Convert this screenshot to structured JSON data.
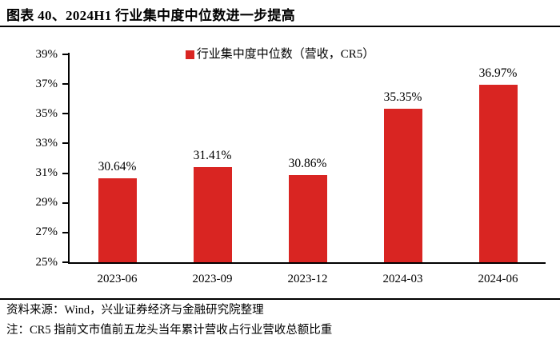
{
  "header": {
    "title": "图表 40、2024H1 行业集中度中位数进一步提高"
  },
  "legend": {
    "label": "行业集中度中位数（营收，CR5）"
  },
  "chart_data": {
    "type": "bar",
    "title": "行业集中度中位数（营收，CR5）",
    "categories": [
      "2023-06",
      "2023-09",
      "2023-12",
      "2024-03",
      "2024-06"
    ],
    "values": [
      30.64,
      31.41,
      30.86,
      35.35,
      36.97
    ],
    "value_labels": [
      "30.64%",
      "31.41%",
      "30.86%",
      "35.35%",
      "36.97%"
    ],
    "ylim": [
      25,
      39
    ],
    "ytick_step": 2,
    "ytick_labels": [
      "39%",
      "37%",
      "35%",
      "33%",
      "31%",
      "29%",
      "27%",
      "25%"
    ],
    "bar_color": "#d92522",
    "axis_color": "#000000",
    "grid": false,
    "legend_position": "top-center",
    "xlabel": "",
    "ylabel": ""
  },
  "footer": {
    "source": "资料来源：Wind，兴业证券经济与金融研究院整理",
    "note": "注：CR5 指前文市值前五龙头当年累计营收占行业营收总额比重"
  }
}
